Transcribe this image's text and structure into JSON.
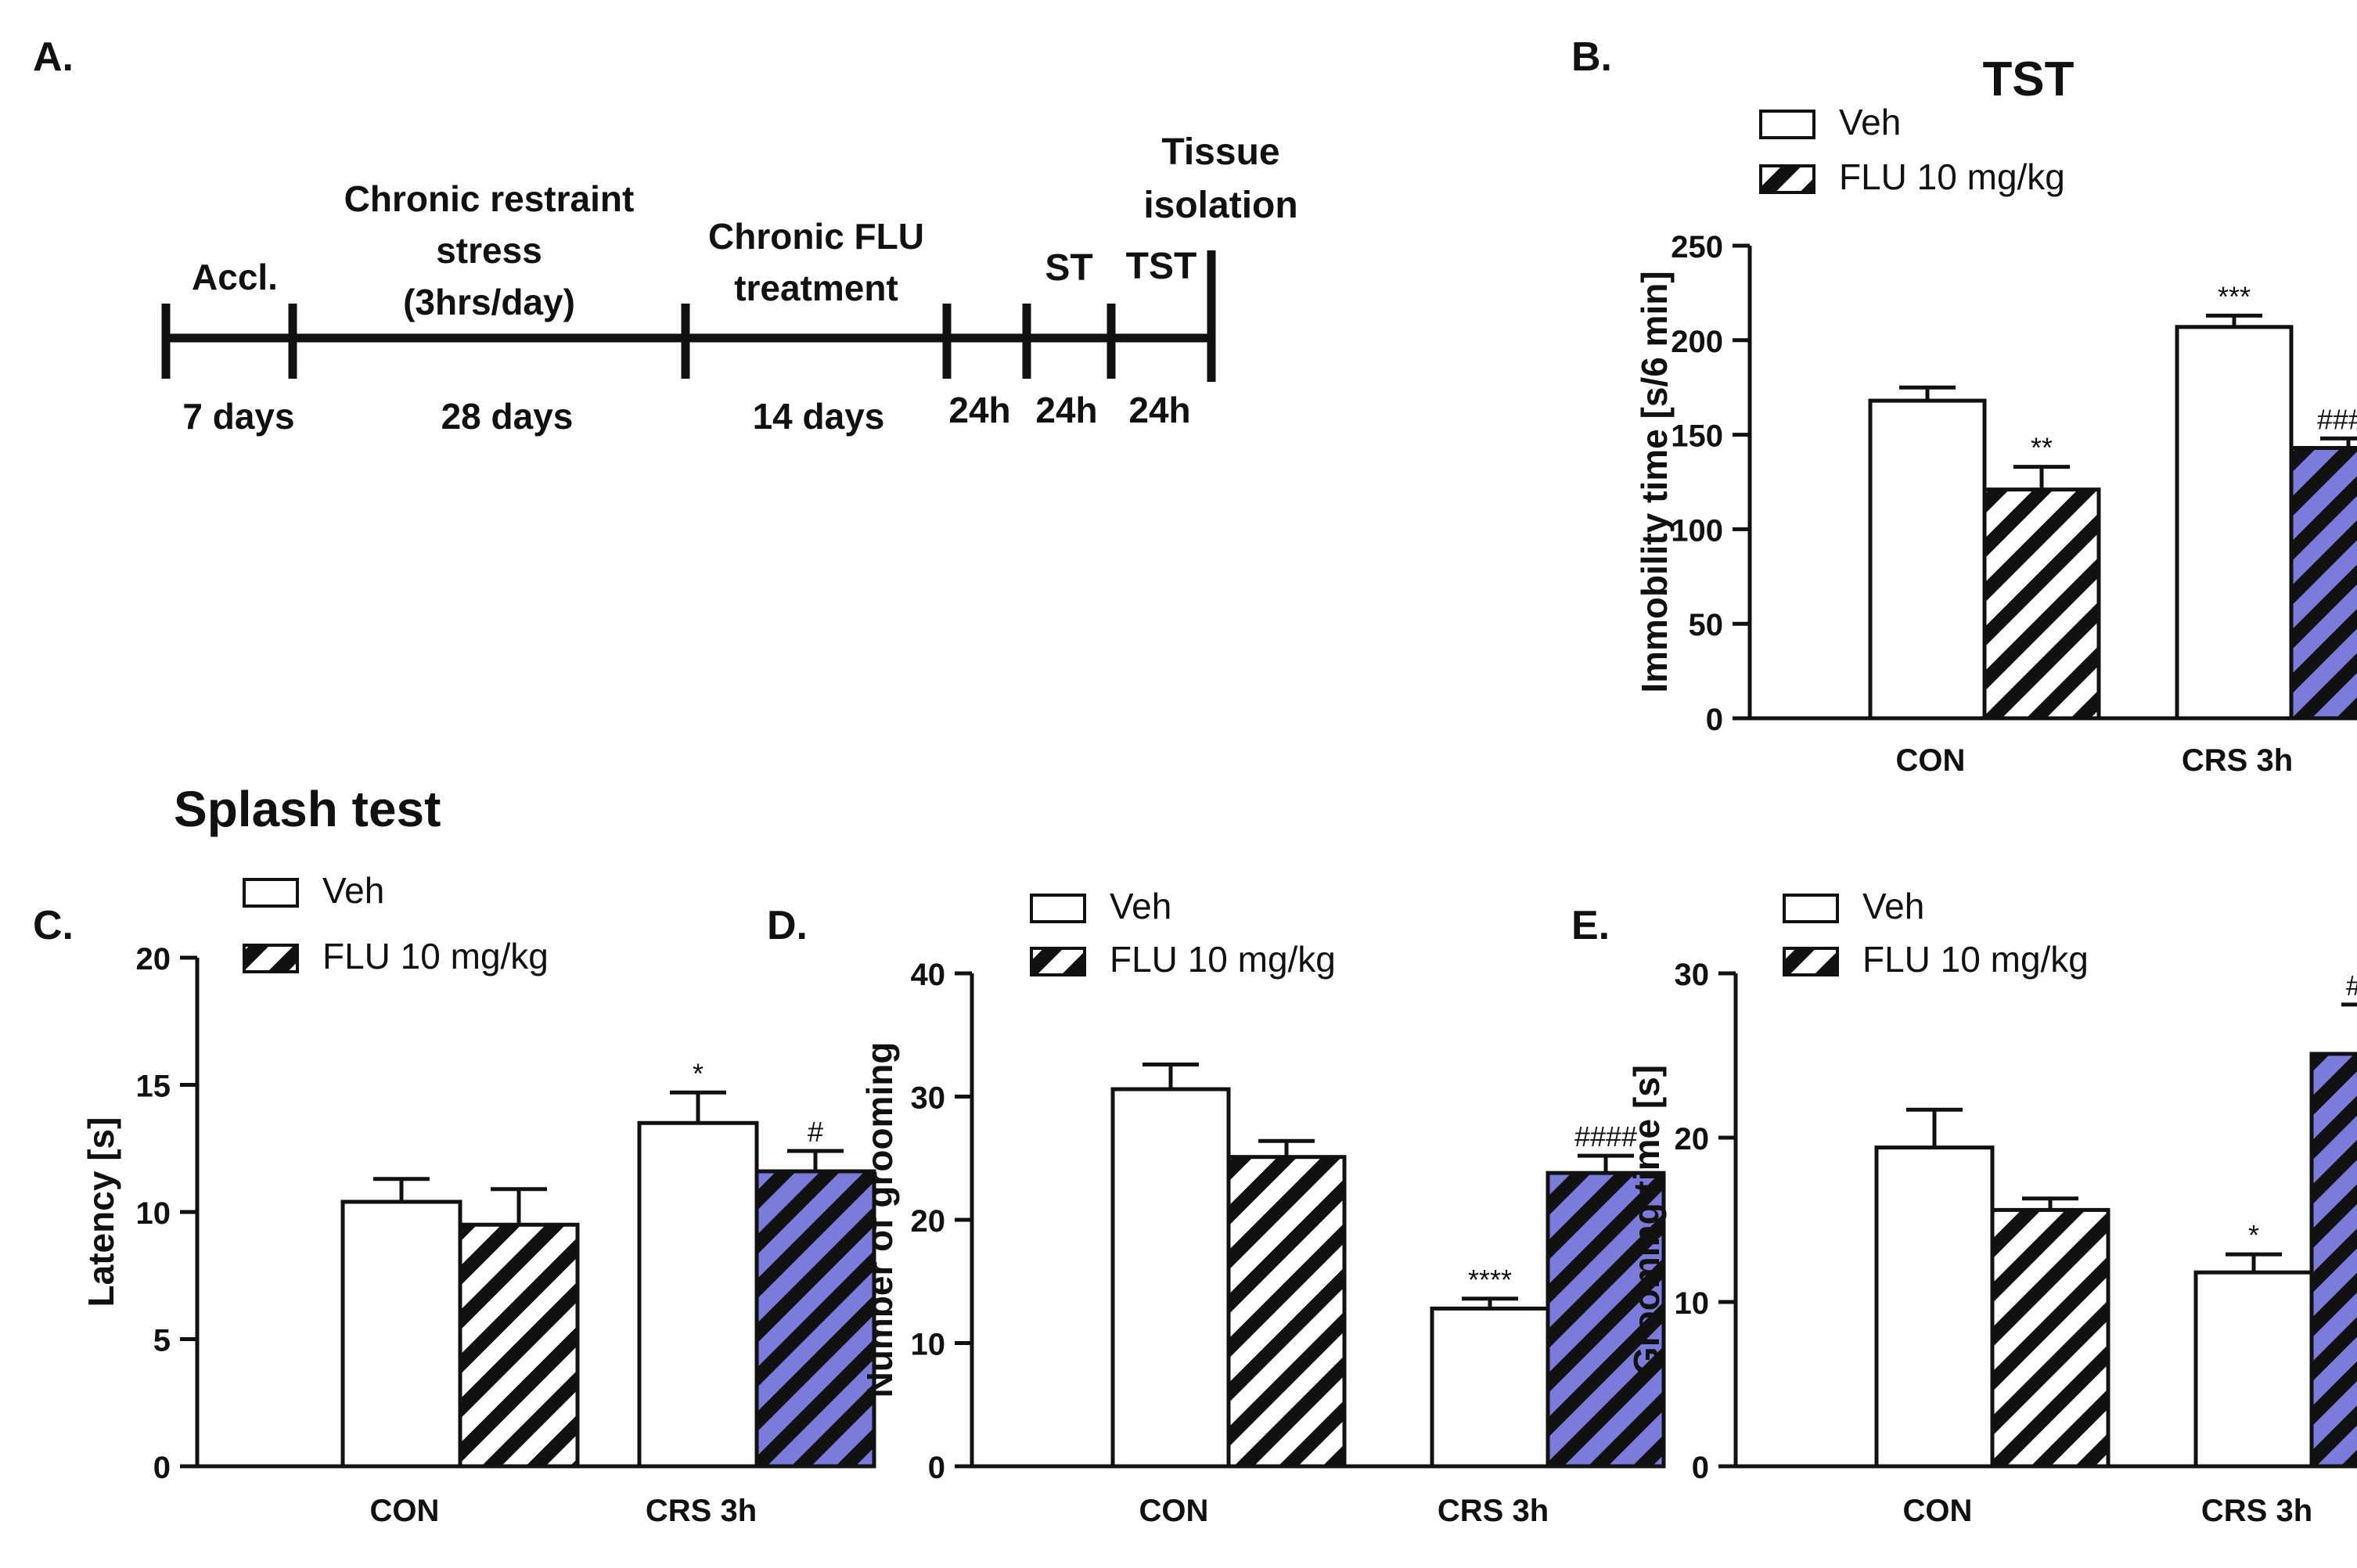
{
  "panels": {
    "a": "A.",
    "b": "B.",
    "c": "C.",
    "d": "D.",
    "e": "E."
  },
  "timeline": {
    "phases": [
      {
        "label": "Accl.",
        "duration": "7 days"
      },
      {
        "label": "Chronic restraint\nstress\n(3hrs/day)",
        "duration": "28 days"
      },
      {
        "label": "Chronic FLU\ntreatment",
        "duration": "14 days"
      },
      {
        "label": "",
        "duration": "24h"
      },
      {
        "label": "ST",
        "duration": "24h"
      },
      {
        "label": "TST",
        "duration": "24h"
      }
    ],
    "end_label": "Tissue\nisolation"
  },
  "splash_title": "Splash test",
  "legend": {
    "veh": "Veh",
    "flu": "FLU 10 mg/kg"
  },
  "colors": {
    "veh": "#ffffff",
    "flu_con": "#ffffff",
    "flu_crs": "#7b7bdc",
    "stripe": "#111111",
    "axis": "#111111"
  },
  "chart_data": [
    {
      "id": "B",
      "type": "bar",
      "title": "TST",
      "ylabel": "Immobility time [s/6 min]",
      "ylim": [
        0,
        250
      ],
      "yticks": [
        0,
        50,
        100,
        150,
        200,
        250
      ],
      "categories": [
        "CON",
        "CRS 3h"
      ],
      "series": [
        {
          "name": "Veh",
          "values": [
            168,
            207
          ],
          "errors": [
            7,
            6
          ],
          "annotations": [
            "",
            "***"
          ]
        },
        {
          "name": "FLU 10 mg/kg",
          "values": [
            121,
            143
          ],
          "errors": [
            12,
            5
          ],
          "annotations": [
            "**",
            "####"
          ]
        }
      ]
    },
    {
      "id": "C",
      "type": "bar",
      "title": "",
      "ylabel": "Latency [s]",
      "ylim": [
        0,
        20
      ],
      "yticks": [
        0,
        5,
        10,
        15,
        20
      ],
      "categories": [
        "CON",
        "CRS 3h"
      ],
      "series": [
        {
          "name": "Veh",
          "values": [
            10.4,
            13.5
          ],
          "errors": [
            0.9,
            1.2
          ],
          "annotations": [
            "",
            "*"
          ]
        },
        {
          "name": "FLU 10 mg/kg",
          "values": [
            9.5,
            11.6
          ],
          "errors": [
            1.4,
            0.8
          ],
          "annotations": [
            "",
            "#"
          ]
        }
      ]
    },
    {
      "id": "D",
      "type": "bar",
      "title": "",
      "ylabel": "Number of grooming",
      "ylim": [
        0,
        40
      ],
      "yticks": [
        0,
        10,
        20,
        30,
        40
      ],
      "categories": [
        "CON",
        "CRS 3h"
      ],
      "series": [
        {
          "name": "Veh",
          "values": [
            30.6,
            12.8
          ],
          "errors": [
            2.0,
            0.8
          ],
          "annotations": [
            "",
            "****"
          ]
        },
        {
          "name": "FLU 10 mg/kg",
          "values": [
            25.1,
            23.8
          ],
          "errors": [
            1.3,
            1.4
          ],
          "annotations": [
            "",
            "####"
          ]
        }
      ]
    },
    {
      "id": "E",
      "type": "bar",
      "title": "",
      "ylabel": "Grooming time [s]",
      "ylim": [
        0,
        30
      ],
      "yticks": [
        0,
        10,
        20,
        30
      ],
      "categories": [
        "CON",
        "CRS 3h"
      ],
      "series": [
        {
          "name": "Veh",
          "values": [
            19.4,
            11.8
          ],
          "errors": [
            2.3,
            1.1
          ],
          "annotations": [
            "",
            "*"
          ]
        },
        {
          "name": "FLU 10 mg/kg",
          "values": [
            15.6,
            25.1
          ],
          "errors": [
            0.7,
            3.0
          ],
          "annotations": [
            "",
            "###"
          ]
        }
      ]
    }
  ]
}
